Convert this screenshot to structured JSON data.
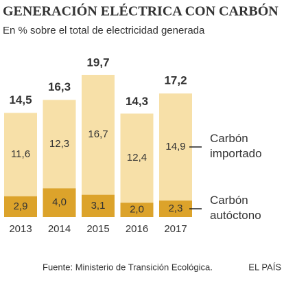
{
  "chart_data": {
    "type": "stacked_bar",
    "title": "GENERACIÓN ELÉCTRICA CON CARBÓN",
    "subtitle": "En % sobre el total de electricidad generada",
    "categories": [
      "2013",
      "2014",
      "2015",
      "2016",
      "2017"
    ],
    "series": [
      {
        "name": "Carbón autóctono",
        "color": "#dca32b",
        "values": [
          2.9,
          4.0,
          3.1,
          2.0,
          2.3
        ],
        "value_labels": [
          "2,9",
          "4,0",
          "3,1",
          "2,0",
          "2,3"
        ]
      },
      {
        "name": "Carbón importado",
        "color": "#f7e0a8",
        "values": [
          11.6,
          12.3,
          16.7,
          12.4,
          14.9
        ],
        "value_labels": [
          "11,6",
          "12,3",
          "16,7",
          "12,4",
          "14,9"
        ]
      }
    ],
    "totals": {
      "values": [
        14.5,
        16.3,
        19.7,
        14.3,
        17.2
      ],
      "value_labels": [
        "14,5",
        "16,3",
        "19,7",
        "14,3",
        "17,2"
      ]
    },
    "source": "Fuente: Ministerio de Transición Ecológica.",
    "credit": "EL PAÍS"
  }
}
